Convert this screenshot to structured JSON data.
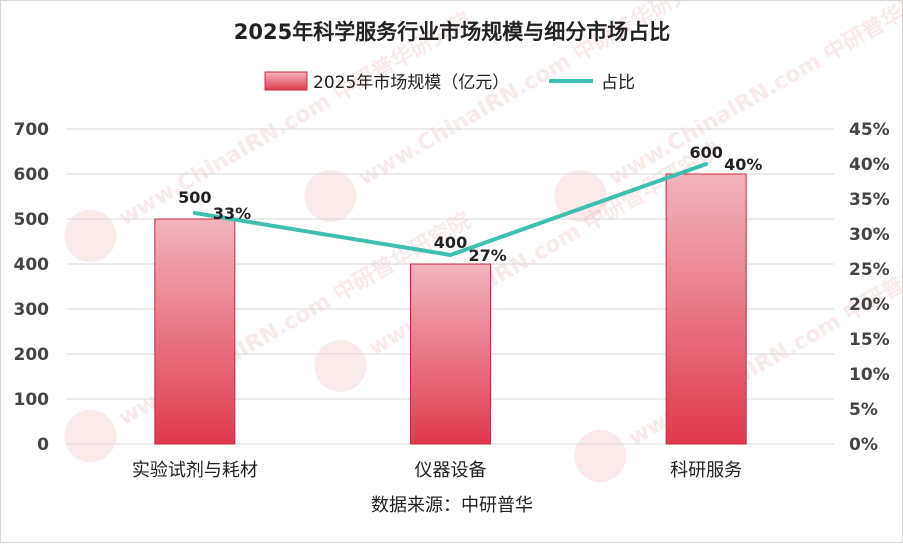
{
  "chart_data": {
    "type": "bar",
    "title": "2025年科学服务行业市场规模与细分市场占比",
    "categories": [
      "实验试剂与耗材",
      "仪器设备",
      "科研服务"
    ],
    "series": [
      {
        "name": "2025年市场规模（亿元）",
        "type": "bar",
        "axis": "left",
        "values": [
          500,
          400,
          600
        ],
        "labels": [
          "500",
          "400",
          "600"
        ]
      },
      {
        "name": "占比",
        "type": "line",
        "axis": "right",
        "values": [
          0.33,
          0.27,
          0.4
        ],
        "labels": [
          "33%",
          "27%",
          "40%"
        ]
      }
    ],
    "y_left": {
      "min": 0,
      "max": 700,
      "ticks": [
        "0",
        "100",
        "200",
        "300",
        "400",
        "500",
        "600",
        "700"
      ]
    },
    "y_right": {
      "min": 0,
      "max": 0.45,
      "ticks": [
        "0%",
        "5%",
        "10%",
        "15%",
        "20%",
        "25%",
        "30%",
        "35%",
        "40%",
        "45%"
      ]
    },
    "grid": true,
    "legend_position": "top",
    "source": "数据来源：中研普华",
    "watermark": "www.ChinaIRN.com 中研普华研究院",
    "colors": {
      "bar_top": "#f2b4bf",
      "bar_bottom": "#e0394f",
      "bar_edge": "#c8283e",
      "line": "#3fbfb0",
      "grid": "#d9d9d9",
      "axis_text": "#444444"
    }
  }
}
